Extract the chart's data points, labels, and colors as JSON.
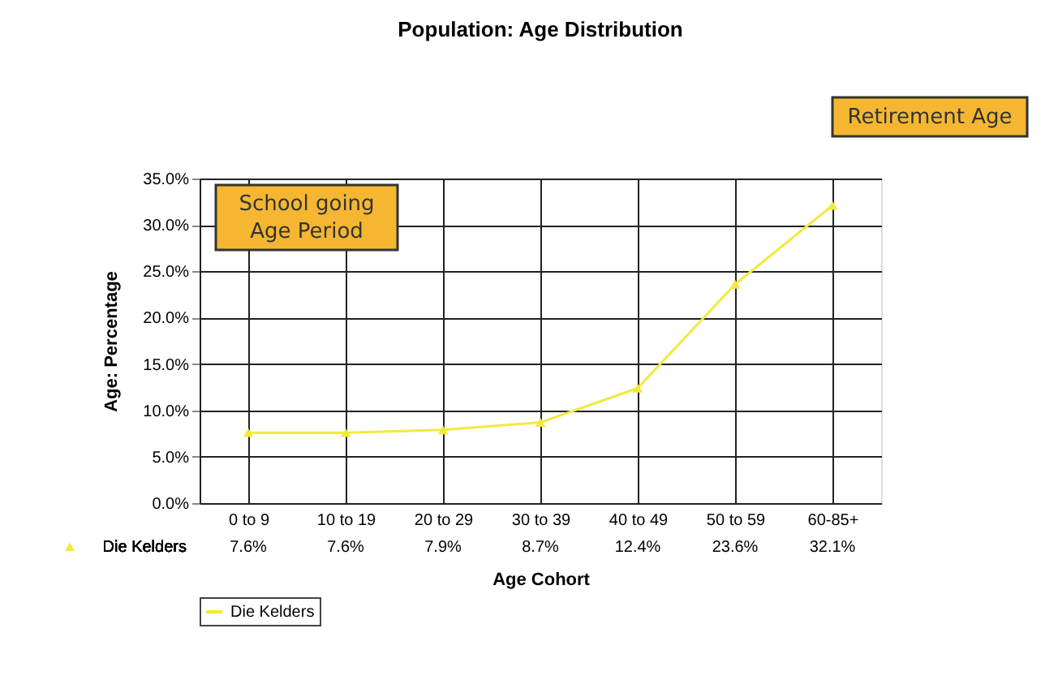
{
  "chart_data": {
    "type": "line",
    "title": "Population: Age Distribution",
    "xlabel": "Age Cohort",
    "ylabel": "Age: Percentage",
    "categories": [
      "0 to 9",
      "10 to 19",
      "20 to 29",
      "30 to 39",
      "40 to 49",
      "50 to 59",
      "60-85+"
    ],
    "series": [
      {
        "name": "Die Kelders",
        "color": "#f2ea3c",
        "values": [
          7.6,
          7.6,
          7.9,
          8.7,
          12.4,
          23.6,
          32.1
        ],
        "value_labels": [
          "7.6%",
          "7.6%",
          "7.9%",
          "8.7%",
          "12.4%",
          "23.6%",
          "32.1%"
        ]
      }
    ],
    "ylim": [
      0,
      35
    ],
    "yticks": [
      {
        "value": 0,
        "label": "0.0%"
      },
      {
        "value": 5,
        "label": "5.0%"
      },
      {
        "value": 10,
        "label": "10.0%"
      },
      {
        "value": 15,
        "label": "15.0%"
      },
      {
        "value": 20,
        "label": "20.0%"
      },
      {
        "value": 25,
        "label": "25.0%"
      },
      {
        "value": 30,
        "label": "30.0%"
      },
      {
        "value": 35,
        "label": "35.0%"
      }
    ],
    "annotations": [
      "School going\nAge Period",
      "Retirement Age"
    ],
    "grid": true,
    "legend": "bottom",
    "marker": "triangle",
    "line_style": "solid"
  }
}
